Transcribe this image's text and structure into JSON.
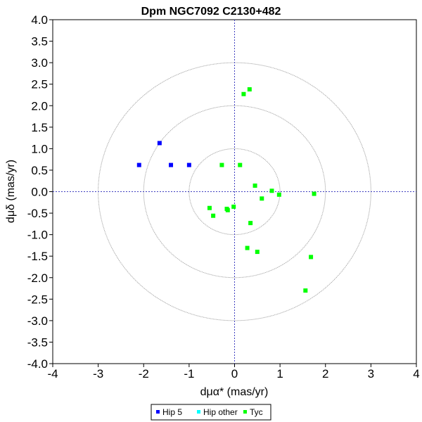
{
  "chart_data": {
    "type": "scatter",
    "title": "Dpm NGC7092  C2130+482",
    "xlabel": "dμα* (mas/yr)",
    "ylabel": "dμδ (mas/yr)",
    "xlim": [
      -4,
      4
    ],
    "ylim": [
      -4,
      4
    ],
    "x_ticks": [
      "-4",
      "-3",
      "-2",
      "-1",
      "0",
      "1",
      "2",
      "3",
      "4"
    ],
    "y_ticks": [
      "-4.0",
      "-3.5",
      "-3.0",
      "-2.5",
      "-2.0",
      "-1.5",
      "-1.0",
      "-0.5",
      "0.0",
      "0.5",
      "1.0",
      "1.5",
      "2.0",
      "2.5",
      "3.0",
      "3.5",
      "4.0"
    ],
    "grid": false,
    "reference_circles_radius": [
      1,
      2,
      3
    ],
    "zero_lines": true,
    "legend_position": "bottom-center",
    "colors": {
      "hip5": "#0000ff",
      "hip_other": "#00ffff",
      "tyc": "#00ff00",
      "circle": "#999999",
      "zero_line": "#4040c0"
    },
    "series": [
      {
        "name": "Hip 5",
        "color": "#0000ff",
        "points": [
          [
            -2.1,
            0.62
          ],
          [
            -1.65,
            1.13
          ],
          [
            -1.4,
            0.62
          ],
          [
            -1.0,
            0.62
          ]
        ]
      },
      {
        "name": "Hip other",
        "color": "#00ffff",
        "points": []
      },
      {
        "name": "Tyc",
        "color": "#00ff00",
        "points": [
          [
            0.2,
            2.27
          ],
          [
            0.33,
            2.38
          ],
          [
            -0.28,
            0.62
          ],
          [
            0.12,
            0.62
          ],
          [
            0.45,
            0.14
          ],
          [
            0.82,
            0.02
          ],
          [
            0.98,
            -0.07
          ],
          [
            1.75,
            -0.05
          ],
          [
            0.6,
            -0.16
          ],
          [
            -0.55,
            -0.38
          ],
          [
            -0.47,
            -0.56
          ],
          [
            -0.17,
            -0.4
          ],
          [
            -0.15,
            -0.43
          ],
          [
            -0.02,
            -0.35
          ],
          [
            0.35,
            -0.73
          ],
          [
            0.28,
            -1.31
          ],
          [
            0.5,
            -1.4
          ],
          [
            1.68,
            -1.52
          ],
          [
            1.56,
            -2.3
          ]
        ]
      }
    ]
  }
}
